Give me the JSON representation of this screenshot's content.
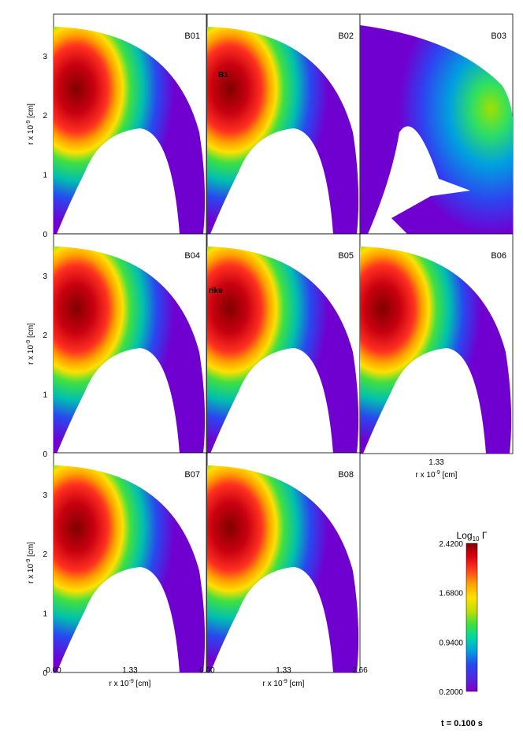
{
  "chart_data": {
    "type": "heatmap",
    "description_units": "radial coordinates",
    "panels": [
      {
        "label": "B01",
        "annotation": ""
      },
      {
        "label": "B02",
        "annotation": "B1"
      },
      {
        "label": "B03",
        "annotation": ""
      },
      {
        "label": "B04",
        "annotation": ""
      },
      {
        "label": "B05",
        "annotation": "rike"
      },
      {
        "label": "B06",
        "annotation": ""
      },
      {
        "label": "B07",
        "annotation": ""
      },
      {
        "label": "B08",
        "annotation": ""
      }
    ],
    "y_axis": {
      "label": "r x 10",
      "exponent": "-9",
      "unit": "[cm]",
      "ticks": [
        "0",
        "1",
        "2",
        "3"
      ],
      "range": [
        0,
        3.7
      ]
    },
    "x_axis": {
      "label": "r x 10",
      "exponent": "-9",
      "unit": "[cm]",
      "ticks": [
        "0.00",
        "1.33",
        "2.66"
      ],
      "range": [
        0,
        2.66
      ]
    },
    "colorbar": {
      "title_main": "Log",
      "title_sub": "10",
      "title_symbol": "Γ",
      "ticks": [
        "2.4200",
        "1.6800",
        "0.9400",
        "0.2000"
      ],
      "range": [
        0.2,
        2.42
      ],
      "colors": [
        "#8000c0",
        "#5028e0",
        "#2848f0",
        "#00a0e0",
        "#00d8a0",
        "#40e040",
        "#c0e000",
        "#ffe000",
        "#ffa000",
        "#ff4020",
        "#e00010",
        "#800000"
      ]
    },
    "time_text": "t = 0.100 s"
  }
}
